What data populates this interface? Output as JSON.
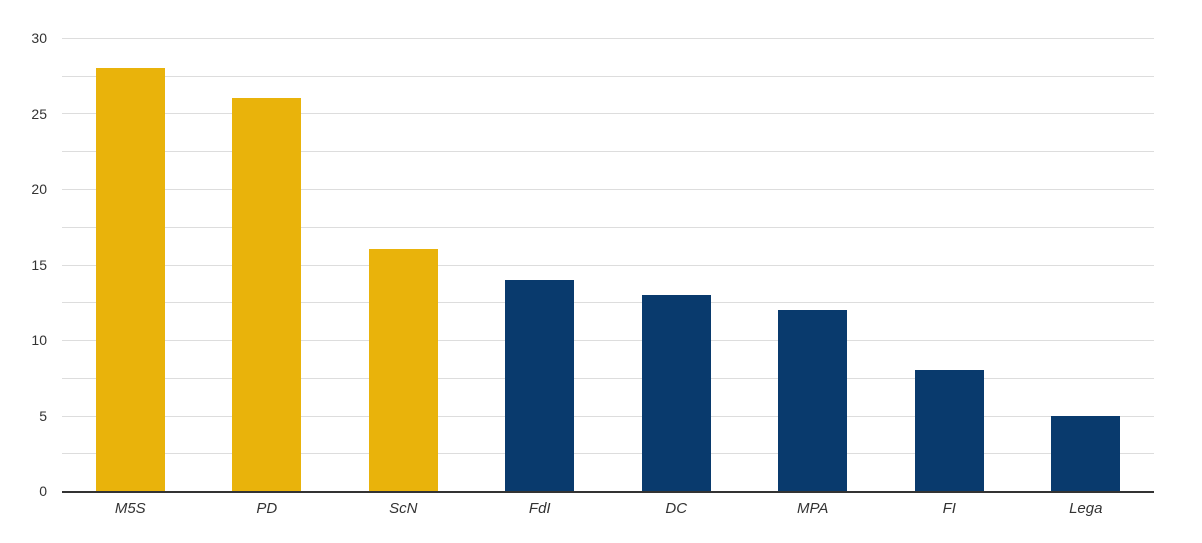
{
  "chart_data": {
    "type": "bar",
    "title": "",
    "xlabel": "",
    "ylabel": "",
    "categories": [
      "M5S",
      "PD",
      "ScN",
      "FdI",
      "DC",
      "MPA",
      "FI",
      "Lega"
    ],
    "values": [
      28,
      26,
      16,
      14,
      13,
      12,
      8,
      5
    ],
    "bar_colors": [
      "#E9B30B",
      "#E9B30B",
      "#E9B30B",
      "#093A6D",
      "#093A6D",
      "#093A6D",
      "#093A6D",
      "#093A6D"
    ],
    "ylim": [
      0,
      30
    ],
    "y_major_ticks": [
      0,
      5,
      10,
      15,
      20,
      25,
      30
    ],
    "y_minor_step": 2.5,
    "grid": true,
    "legend": false,
    "colors": {
      "gold": "#E9B30B",
      "navy": "#093A6D",
      "gridline": "#DDDDDD",
      "axis_line": "#333333",
      "tick_label": "#333333",
      "background": "#FFFFFF"
    }
  }
}
